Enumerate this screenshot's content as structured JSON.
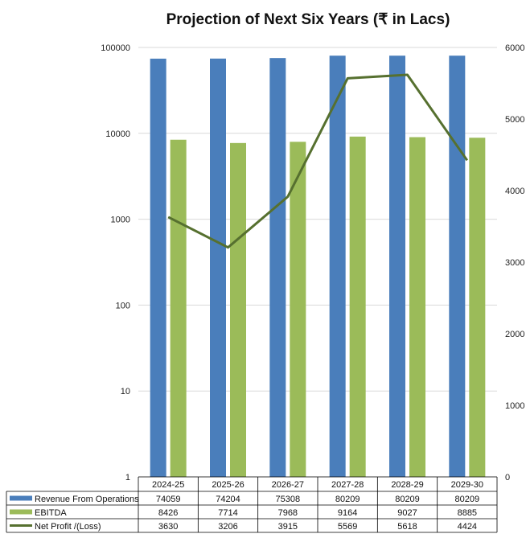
{
  "chart_data": {
    "type": "bar",
    "title": "Projection of Next Six Years (₹ in Lacs)",
    "categories": [
      "2024-25",
      "2025-26",
      "2026-27",
      "2027-28",
      "2028-29",
      "2029-30"
    ],
    "series": [
      {
        "name": "Revenue From Operations",
        "type": "bar",
        "axis": "left",
        "color": "#4a7ebb",
        "values": [
          74059,
          74204,
          75308,
          80209,
          80209,
          80209
        ]
      },
      {
        "name": "EBITDA",
        "type": "bar",
        "axis": "left",
        "color": "#9bbb59",
        "values": [
          8426,
          7714,
          7968,
          9164,
          9027,
          8885
        ]
      },
      {
        "name": "Net Profit /(Loss)",
        "type": "line",
        "axis": "right",
        "color": "#56702f",
        "values": [
          3630,
          3206,
          3915,
          5569,
          5618,
          4424
        ]
      }
    ],
    "y_left": {
      "scale": "log",
      "range": [
        1,
        100000
      ],
      "ticks": [
        "1",
        "10",
        "100",
        "1000",
        "10000",
        "100000"
      ]
    },
    "y_right": {
      "scale": "linear",
      "range": [
        0,
        6000
      ],
      "ticks": [
        "0",
        "1000",
        "2000",
        "3000",
        "4000",
        "5000",
        "6000"
      ]
    },
    "grid": true,
    "legend": "data-table-bottom"
  }
}
